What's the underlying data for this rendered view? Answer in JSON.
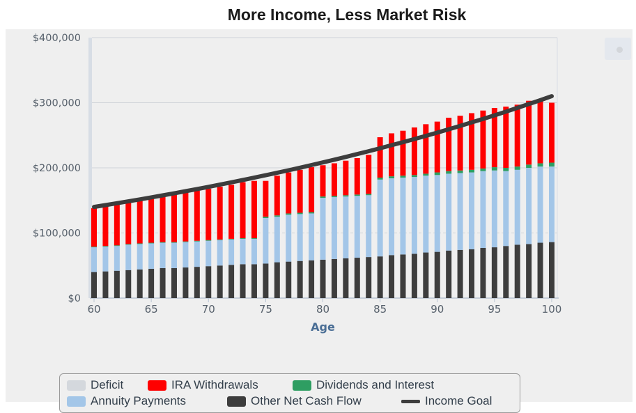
{
  "title": "More Income, Less Market Risk",
  "colors": {
    "deficit": "#d4d8dd",
    "ira": "#ff0000",
    "dividends": "#2e9e62",
    "annuity": "#a3c6e8",
    "other": "#3d3d3d",
    "goal": "#3d3d3d"
  },
  "chart_data": {
    "type": "bar",
    "stacked": true,
    "xlabel": "Age",
    "ylabel": "",
    "x_ticks": [
      60,
      65,
      70,
      75,
      80,
      85,
      90,
      95,
      100
    ],
    "y_ticks": [
      "$0",
      "$100,000",
      "$200,000",
      "$300,000",
      "$400,000"
    ],
    "ylim": [
      0,
      400000
    ],
    "grid": true,
    "legend_position": "bottom",
    "categories": [
      60,
      61,
      62,
      63,
      64,
      65,
      66,
      67,
      68,
      69,
      70,
      71,
      72,
      73,
      74,
      75,
      76,
      77,
      78,
      79,
      80,
      81,
      82,
      83,
      84,
      85,
      86,
      87,
      88,
      89,
      90,
      91,
      92,
      93,
      94,
      95,
      96,
      97,
      98,
      99,
      100
    ],
    "series": [
      {
        "name": "Other Net Cash Flow",
        "color_key": "other",
        "values": [
          40000,
          41000,
          42000,
          43000,
          44000,
          45000,
          46000,
          46000,
          47000,
          48000,
          49000,
          50000,
          51000,
          52000,
          52000,
          53000,
          55000,
          56000,
          57000,
          58000,
          59000,
          60000,
          61000,
          62000,
          63000,
          64000,
          66000,
          67000,
          68000,
          70000,
          71000,
          73000,
          74000,
          75000,
          77000,
          78000,
          80000,
          82000,
          83000,
          85000,
          86000
        ]
      },
      {
        "name": "Annuity Payments",
        "color_key": "annuity",
        "values": [
          38000,
          38000,
          38000,
          39000,
          39000,
          39000,
          39000,
          39000,
          39000,
          39000,
          39000,
          39000,
          39000,
          39000,
          39000,
          70000,
          70000,
          72000,
          72000,
          72000,
          95000,
          95000,
          95000,
          95000,
          95000,
          118000,
          118000,
          118000,
          118000,
          118000,
          118000,
          118000,
          118000,
          118000,
          118000,
          118000,
          115000,
          115000,
          117000,
          117000,
          116000
        ]
      },
      {
        "name": "Dividends and Interest",
        "color_key": "dividends",
        "values": [
          1000,
          1000,
          1000,
          1000,
          1000,
          1000,
          1000,
          1000,
          1000,
          1000,
          1000,
          1000,
          1000,
          1000,
          1000,
          2000,
          2000,
          2000,
          2000,
          2000,
          2000,
          2000,
          2000,
          2000,
          2000,
          3000,
          3000,
          3000,
          3000,
          3000,
          4000,
          4000,
          4000,
          4000,
          4000,
          5000,
          5000,
          5000,
          5000,
          5000,
          6000
        ]
      },
      {
        "name": "IRA Withdrawals",
        "color_key": "ira",
        "values": [
          59000,
          61000,
          63000,
          64000,
          66000,
          68000,
          70000,
          73000,
          75000,
          77000,
          79000,
          81000,
          83000,
          86000,
          88000,
          55000,
          61000,
          63000,
          66000,
          69000,
          48000,
          50000,
          53000,
          56000,
          60000,
          62000,
          66000,
          69000,
          73000,
          76000,
          78000,
          82000,
          84000,
          87000,
          89000,
          91000,
          94000,
          95000,
          98000,
          97000,
          92000
        ]
      },
      {
        "name": "Deficit",
        "color_key": "deficit",
        "values": [
          0,
          0,
          0,
          0,
          0,
          0,
          0,
          0,
          0,
          0,
          0,
          0,
          0,
          0,
          0,
          0,
          0,
          0,
          0,
          0,
          0,
          0,
          0,
          0,
          0,
          0,
          0,
          0,
          0,
          0,
          0,
          0,
          0,
          0,
          0,
          0,
          0,
          0,
          0,
          0,
          0
        ]
      },
      {
        "name": "Income Goal",
        "color_key": "goal",
        "type": "line",
        "values": [
          140000,
          143300,
          146700,
          150100,
          153600,
          157200,
          160900,
          164600,
          168400,
          172300,
          176300,
          180400,
          184600,
          188900,
          193300,
          197800,
          202400,
          207100,
          211900,
          216800,
          221800,
          227000,
          232200,
          237600,
          243100,
          248800,
          254600,
          260500,
          266500,
          272700,
          279000,
          285500,
          292100,
          298900,
          305900,
          313000,
          320300,
          327700,
          335300,
          343100,
          310000
        ]
      }
    ],
    "legend": [
      "Deficit",
      "IRA Withdrawals",
      "Dividends and Interest",
      "Annuity Payments",
      "Other Net Cash Flow",
      "Income Goal"
    ]
  },
  "legend_labels": {
    "deficit": "Deficit",
    "ira": "IRA Withdrawals",
    "dividends": "Dividends and Interest",
    "annuity": "Annuity Payments",
    "other": "Other Net Cash Flow",
    "goal": "Income Goal"
  }
}
